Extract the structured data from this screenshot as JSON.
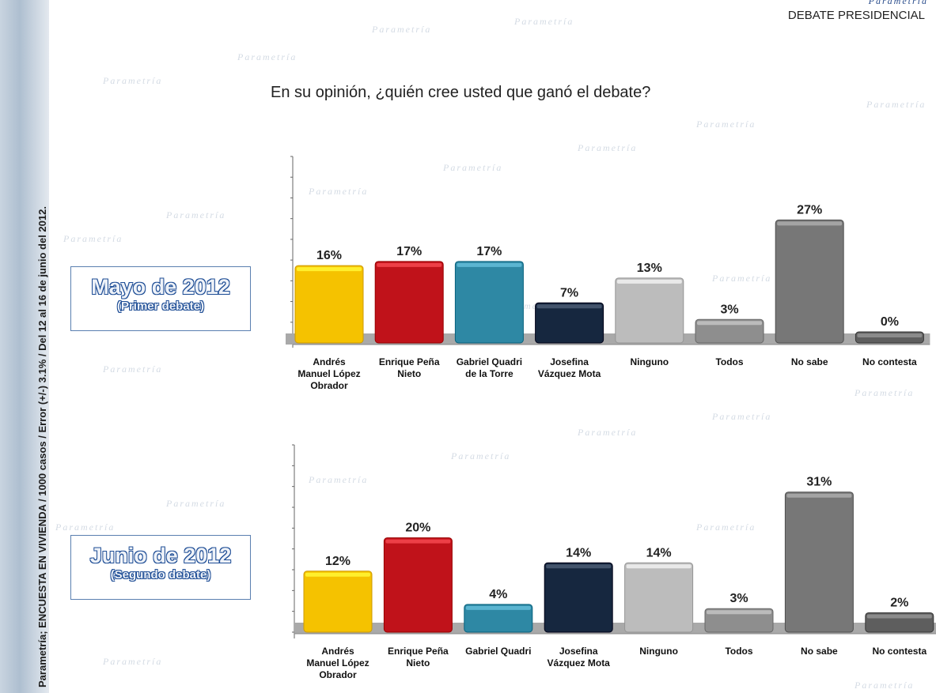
{
  "header": {
    "brand": "Parametría",
    "title": "DEBATE PRESIDENCIAL"
  },
  "sidebar": {
    "text": "Parametría; ENCUESTA EN VIVIENDA / 1000 casos / Error (+/-) 3.1% / Del 12 al 16 de junio del 2012."
  },
  "question": "En su opinión, ¿quién cree usted que ganó el debate?",
  "watermark": "Parametría",
  "colors": {
    "amlo": "#f5c200",
    "epn": "#c0121a",
    "gqt": "#2e88a4",
    "jvm": "#16273f",
    "ninguno": "#bcbcbc",
    "todos": "#8e8e8e",
    "nosabe": "#777777",
    "nocontesta": "#5e5e5e",
    "floor": "#a9a9a9"
  },
  "chart_data": [
    {
      "type": "bar",
      "period_title": "Mayo de 2012",
      "period_subtitle": "(Primer debate)",
      "categories": [
        "Andrés Manuel López Obrador",
        "Enrique Peña Nieto",
        "Gabriel Quadri de la Torre",
        "Josefina Vázquez Mota",
        "Ninguno",
        "Todos",
        "No sabe",
        "No contesta"
      ],
      "category_lines": [
        [
          "Andrés",
          "Manuel López",
          "Obrador"
        ],
        [
          "Enrique Peña",
          "Nieto"
        ],
        [
          "Gabriel Quadri",
          "de la Torre"
        ],
        [
          "Josefina",
          "Vázquez Mota"
        ],
        [
          "Ninguno"
        ],
        [
          "Todos"
        ],
        [
          "No sabe"
        ],
        [
          "No contesta"
        ]
      ],
      "values": [
        16,
        17,
        17,
        7,
        13,
        3,
        27,
        0
      ],
      "labels": [
        "16%",
        "17%",
        "17%",
        "7%",
        "13%",
        "3%",
        "27%",
        "0%"
      ],
      "color_keys": [
        "amlo",
        "epn",
        "gqt",
        "jvm",
        "ninguno",
        "todos",
        "nosabe",
        "nocontesta"
      ],
      "ylim": [
        0,
        45
      ]
    },
    {
      "type": "bar",
      "period_title": "Junio de 2012",
      "period_subtitle": "(Segundo debate)",
      "categories": [
        "Andrés Manuel López Obrador",
        "Enrique Peña Nieto",
        "Gabriel Quadri",
        "Josefina Vázquez Mota",
        "Ninguno",
        "Todos",
        "No sabe",
        "No contesta"
      ],
      "category_lines": [
        [
          "Andrés",
          "Manuel López",
          "Obrador"
        ],
        [
          "Enrique Peña",
          "Nieto"
        ],
        [
          "Gabriel Quadri"
        ],
        [
          "Josefina",
          "Vázquez Mota"
        ],
        [
          "Ninguno"
        ],
        [
          "Todos"
        ],
        [
          "No sabe"
        ],
        [
          "No contesta"
        ]
      ],
      "values": [
        12,
        20,
        4,
        14,
        14,
        3,
        31,
        2
      ],
      "labels": [
        "12%",
        "20%",
        "4%",
        "14%",
        "14%",
        "3%",
        "31%",
        "2%"
      ],
      "color_keys": [
        "amlo",
        "epn",
        "gqt",
        "jvm",
        "ninguno",
        "todos",
        "nosabe",
        "nocontesta"
      ],
      "ylim": [
        0,
        45
      ]
    }
  ]
}
